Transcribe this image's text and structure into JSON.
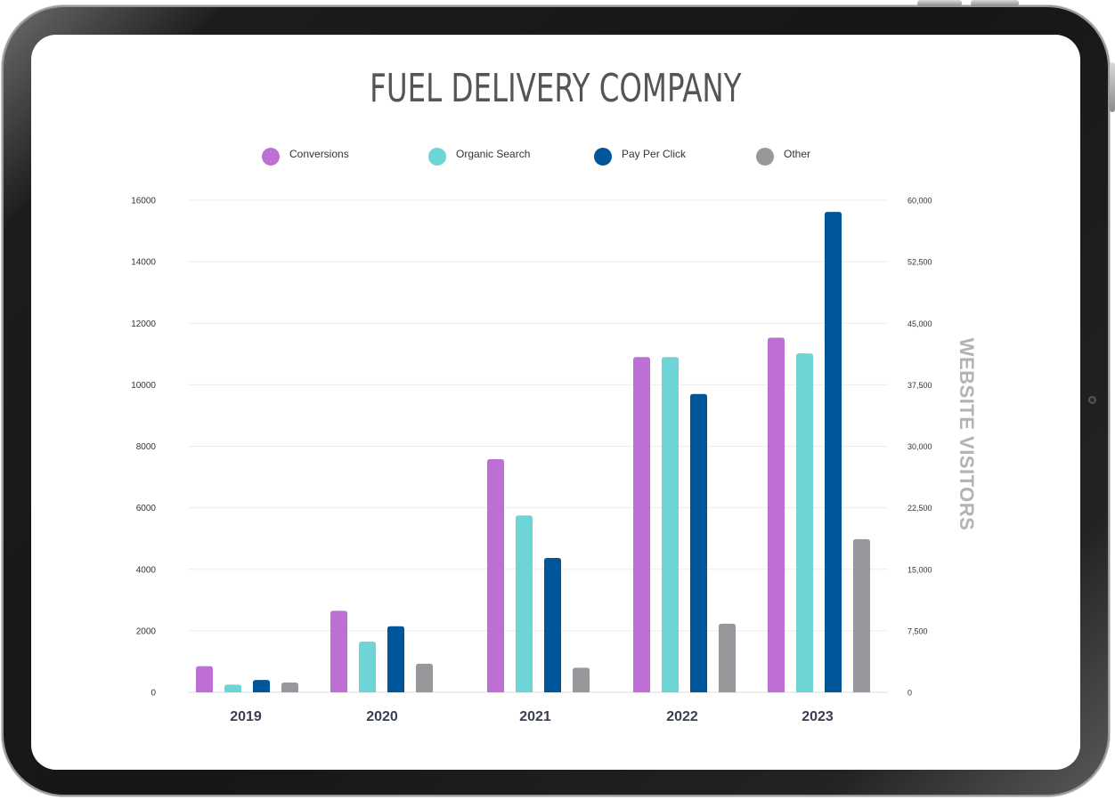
{
  "chart_data": {
    "type": "bar",
    "title": "FUEL DELIVERY COMPANY",
    "categories": [
      "2019",
      "2020",
      "2021",
      "2022",
      "2023"
    ],
    "series": [
      {
        "name": "Conversions",
        "color": "#bd6fd6",
        "values": [
          850,
          2650,
          7580,
          10900,
          11530
        ]
      },
      {
        "name": "Organic Search",
        "color": "#6dd5d6",
        "values": [
          250,
          1650,
          5750,
          10900,
          11020
        ]
      },
      {
        "name": "Pay Per Click",
        "color": "#00569b",
        "values": [
          400,
          2150,
          4370,
          9700,
          15620
        ]
      },
      {
        "name": "Other",
        "color": "#98989c",
        "values": [
          320,
          930,
          800,
          2230,
          4980
        ]
      }
    ],
    "ylim": [
      0,
      16000
    ],
    "yticks": [
      "0",
      "2000",
      "4000",
      "6000",
      "8000",
      "10000",
      "12000",
      "14000",
      "16000"
    ],
    "y2ticks": [
      "0",
      "7,500",
      "15,000",
      "22,500",
      "30,000",
      "37,500",
      "45,000",
      "52,500",
      "60,000"
    ],
    "y2label": "WEBSITE VISITORS",
    "xlabel": "",
    "ylabel": "",
    "grid": true,
    "legend_position": "top"
  }
}
